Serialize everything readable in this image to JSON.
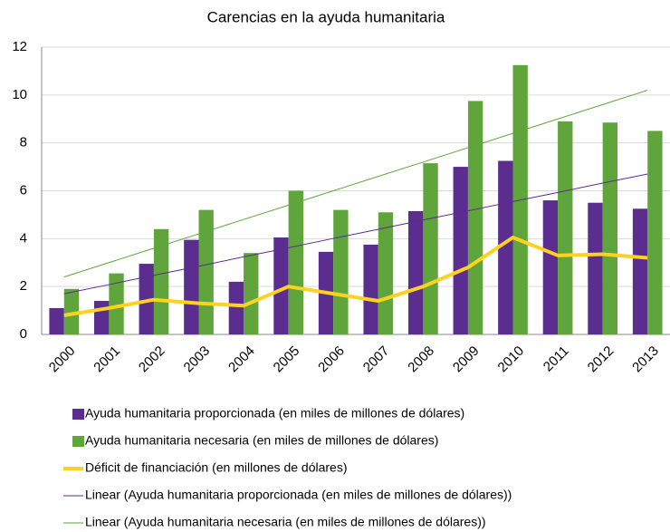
{
  "chart_data": {
    "type": "bar",
    "title": "Carencias en la ayuda humanitaria",
    "categories": [
      "2000",
      "2001",
      "2002",
      "2003",
      "2004",
      "2005",
      "2006",
      "2007",
      "2008",
      "2009",
      "2010",
      "2011",
      "2012",
      "2013"
    ],
    "series": [
      {
        "name": "Ayuda humanitaria proporcionada (en miles de millones de dólares)",
        "type": "bar",
        "color": "#5b2d8e",
        "values": [
          1.1,
          1.4,
          2.95,
          3.95,
          2.2,
          4.05,
          3.45,
          3.75,
          5.15,
          7.0,
          7.25,
          5.6,
          5.5,
          5.25
        ]
      },
      {
        "name": "Ayuda humanitaria necesaria (en miles de millones de dólares)",
        "type": "bar",
        "color": "#5fa53b",
        "values": [
          1.9,
          2.55,
          4.4,
          5.2,
          3.4,
          6.0,
          5.2,
          5.1,
          7.15,
          9.75,
          11.25,
          8.9,
          8.85,
          8.5
        ]
      },
      {
        "name": "Déficit de financiación (en millones de dólares)",
        "type": "line",
        "width": 4,
        "color": "#ffd21f",
        "values": [
          0.8,
          1.1,
          1.45,
          1.3,
          1.2,
          2.0,
          1.7,
          1.4,
          2.0,
          2.8,
          4.05,
          3.3,
          3.35,
          3.2
        ]
      },
      {
        "name": "Linear (Ayuda humanitaria proporcionada (en miles de millones de dólares))",
        "type": "line",
        "width": 1,
        "color": "#5b2d8e",
        "values": [
          1.7,
          2.08,
          2.47,
          2.85,
          3.24,
          3.62,
          4.01,
          4.39,
          4.78,
          5.16,
          5.55,
          5.93,
          6.32,
          6.7
        ]
      },
      {
        "name": "Linear (Ayuda humanitaria necesaria (en miles de millones de dólares))",
        "type": "line",
        "width": 1,
        "color": "#5fa53b",
        "values": [
          2.4,
          3.0,
          3.6,
          4.2,
          4.8,
          5.4,
          6.0,
          6.6,
          7.2,
          7.8,
          8.4,
          9.0,
          9.6,
          10.2
        ]
      }
    ],
    "ylim": [
      0,
      12
    ],
    "yticks": [
      0,
      2,
      4,
      6,
      8,
      10,
      12
    ],
    "grid": true,
    "legend": "bottom"
  }
}
